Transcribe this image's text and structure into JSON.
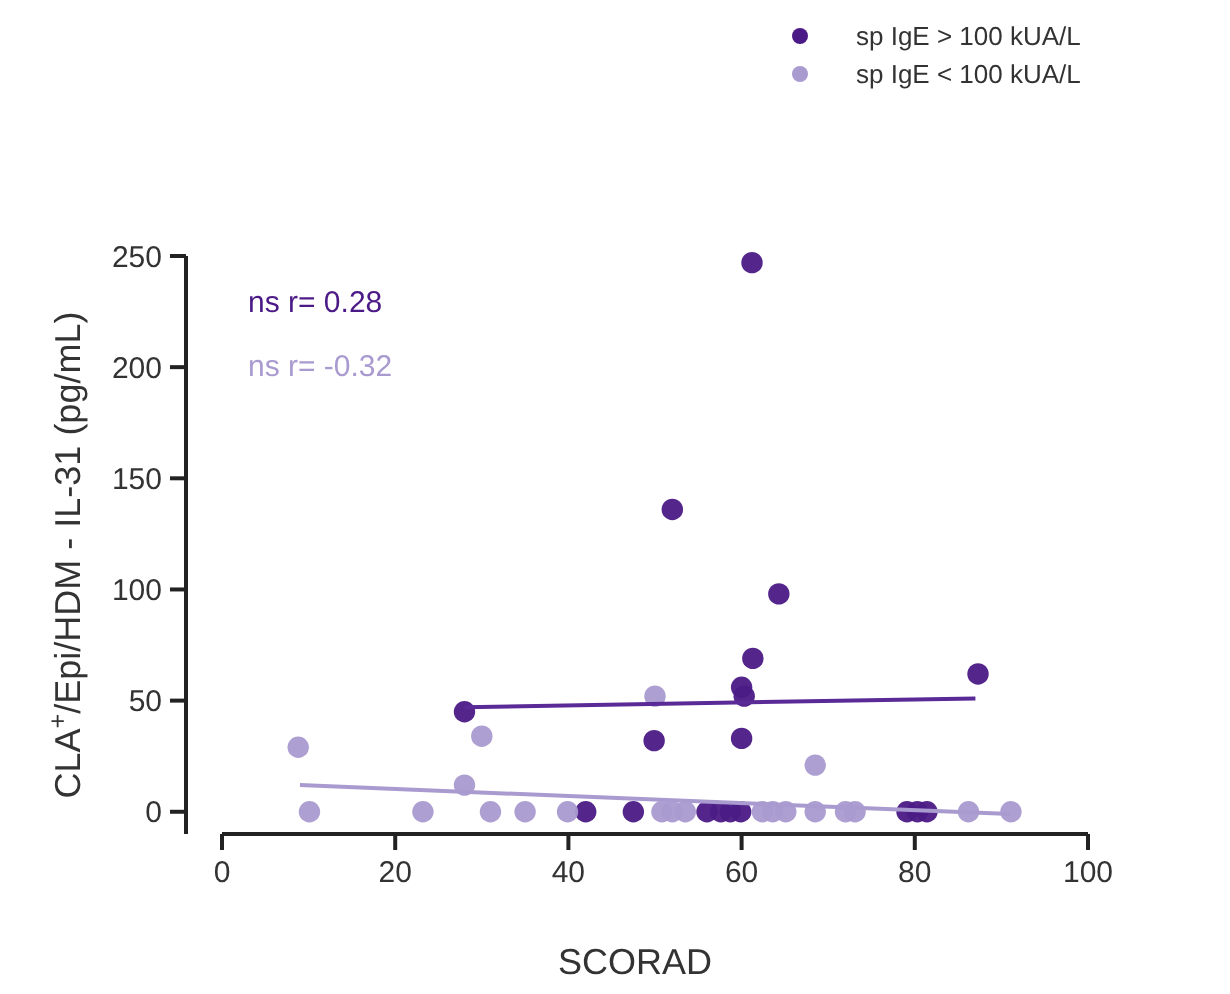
{
  "chart_data": {
    "type": "scatter",
    "xlabel": "SCORAD",
    "ylabel": "CLA$^{+}$/Epi/HDM - IL-31 (pg/mL)",
    "xlim": [
      0,
      100
    ],
    "xticks": [
      0,
      20,
      40,
      60,
      80,
      100
    ],
    "ylim": [
      -10,
      250
    ],
    "yticks": [
      0,
      50,
      100,
      150,
      200,
      250
    ],
    "grid": false,
    "legend": "top right",
    "marker": "circle",
    "annotations": [
      "ns r= 0.28",
      "ns r= -0.32"
    ],
    "series": [
      {
        "name": "sp IgE > 100 kUA/L",
        "color": "#4b1a86",
        "x": [
          61.2,
          52,
          64.3,
          61.3,
          60,
          60.3,
          87.3,
          28,
          49.9,
          60,
          42,
          47.5,
          56,
          57.6,
          58.7,
          59.9,
          79.1,
          80.3,
          81.4
        ],
        "values": [
          247,
          136,
          98,
          69,
          56,
          52,
          62,
          45,
          32,
          33,
          0,
          0,
          0,
          0,
          0,
          0,
          0,
          0,
          0
        ]
      },
      {
        "name": "sp IgE < 100 kUA/L",
        "color": "#a99ad0",
        "x": [
          8.8,
          30,
          28,
          50,
          68.5,
          10.1,
          23.2,
          31,
          35,
          39.9,
          50.8,
          52,
          53.5,
          62.4,
          63.6,
          65.1,
          68.5,
          72,
          73.1,
          86.2,
          91.1
        ],
        "values": [
          29,
          34,
          12,
          52,
          21,
          0,
          0,
          0,
          0,
          0,
          0,
          0,
          0,
          0,
          0,
          0,
          0,
          0,
          0,
          0,
          0
        ]
      },
      {
        "type": "line",
        "marker": "none",
        "color": "#5a2a96",
        "x": [
          28,
          87
        ],
        "values": [
          47,
          51
        ]
      },
      {
        "type": "line",
        "marker": "none",
        "color": "#a99ad0",
        "x": [
          9,
          91
        ],
        "values": [
          12,
          -1
        ]
      }
    ]
  }
}
